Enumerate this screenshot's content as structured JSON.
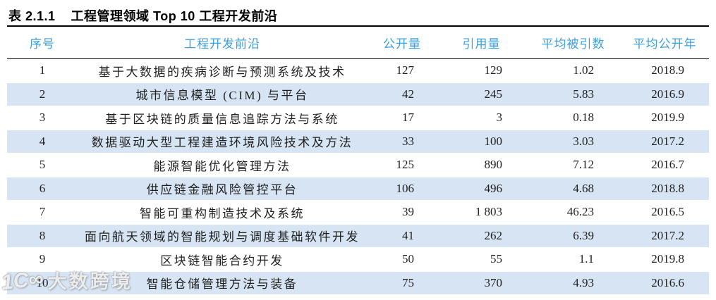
{
  "caption": {
    "label": "表 2.1.1",
    "text": "工程管理领域 Top 10 工程开发前沿"
  },
  "table": {
    "columns": [
      {
        "key": "rank",
        "label": "序号"
      },
      {
        "key": "frontier",
        "label": "工程开发前沿"
      },
      {
        "key": "pub",
        "label": "公开量"
      },
      {
        "key": "cite",
        "label": "引用量"
      },
      {
        "key": "avgcite",
        "label": "平均被引数"
      },
      {
        "key": "avgyear",
        "label": "平均公开年"
      }
    ],
    "rows": [
      [
        "1",
        "基于大数据的疾病诊断与预测系统及技术",
        "127",
        "129",
        "1.02",
        "2018.9"
      ],
      [
        "2",
        "城市信息模型 (CIM) 与平台",
        "42",
        "245",
        "5.83",
        "2016.9"
      ],
      [
        "3",
        "基于区块链的质量信息追踪方法与系统",
        "17",
        "3",
        "0.18",
        "2019.9"
      ],
      [
        "4",
        "数据驱动大型工程建造环境风险技术及方法",
        "33",
        "100",
        "3.03",
        "2017.2"
      ],
      [
        "5",
        "能源智能优化管理方法",
        "125",
        "890",
        "7.12",
        "2016.7"
      ],
      [
        "6",
        "供应链金融风险管控平台",
        "106",
        "496",
        "4.68",
        "2018.8"
      ],
      [
        "7",
        "智能可重构制造技术及系统",
        "39",
        "1 803",
        "46.23",
        "2016.5"
      ],
      [
        "8",
        "面向航天领域的智能规划与调度基础软件开发",
        "41",
        "262",
        "6.39",
        "2017.2"
      ],
      [
        "9",
        "区块链智能合约开发",
        "50",
        "55",
        "1.1",
        "2019.8"
      ],
      [
        "10",
        "智能仓储管理方法与装备",
        "75",
        "370",
        "4.93",
        "2016.6"
      ]
    ]
  },
  "chart_data": {
    "type": "table",
    "title": "表 2.1.1 工程管理领域 Top 10 工程开发前沿",
    "columns": [
      "序号",
      "工程开发前沿",
      "公开量",
      "引用量",
      "平均被引数",
      "平均公开年"
    ],
    "rows": [
      [
        1,
        "基于大数据的疾病诊断与预测系统及技术",
        127,
        129,
        1.02,
        2018.9
      ],
      [
        2,
        "城市信息模型 (CIM) 与平台",
        42,
        245,
        5.83,
        2016.9
      ],
      [
        3,
        "基于区块链的质量信息追踪方法与系统",
        17,
        3,
        0.18,
        2019.9
      ],
      [
        4,
        "数据驱动大型工程建造环境风险技术及方法",
        33,
        100,
        3.03,
        2017.2
      ],
      [
        5,
        "能源智能优化管理方法",
        125,
        890,
        7.12,
        2016.7
      ],
      [
        6,
        "供应链金融风险管控平台",
        106,
        496,
        4.68,
        2018.8
      ],
      [
        7,
        "智能可重构制造技术及系统",
        39,
        1803,
        46.23,
        2016.5
      ],
      [
        8,
        "面向航天领域的智能规划与调度基础软件开发",
        41,
        262,
        6.39,
        2017.2
      ],
      [
        9,
        "区块链智能合约开发",
        50,
        55,
        1.1,
        2019.8
      ],
      [
        10,
        "智能仓储管理方法与装备",
        75,
        370,
        4.93,
        2016.6
      ]
    ]
  },
  "watermark": {
    "logo": "1C∞",
    "text": "大数跨境"
  },
  "colors": {
    "header_text": "#3EA0DB",
    "row_alt_bg": "#D6E4F3",
    "body_text": "#1f1f1f",
    "rule": "#000000"
  }
}
